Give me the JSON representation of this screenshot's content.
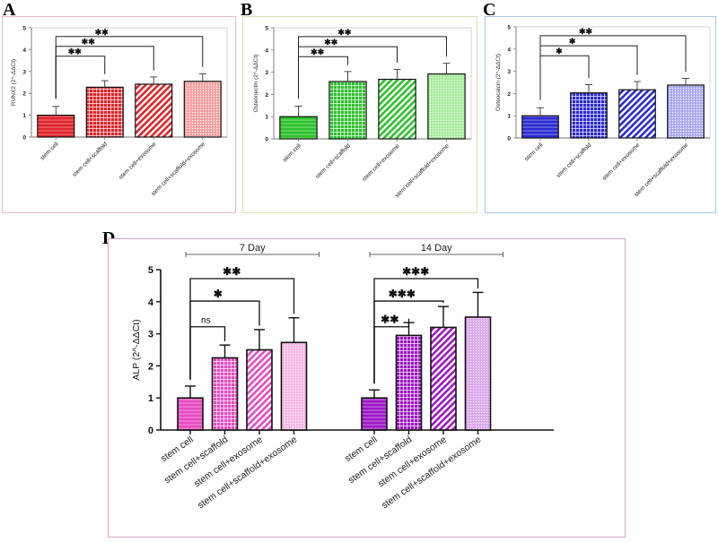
{
  "figure": {
    "panels": [
      {
        "letter": "A",
        "frame_color": "#e8b9c4"
      },
      {
        "letter": "B",
        "frame_color": "#d9e0b4"
      },
      {
        "letter": "C",
        "frame_color": "#a9c6e3"
      },
      {
        "letter": "D",
        "frame_color": "#d9a3c8"
      }
    ]
  },
  "chart_data": [
    {
      "id": "A",
      "type": "bar",
      "title": "",
      "xlabel": "",
      "ylabel": "RUNX2 (2^-ΔΔCt)",
      "ylim": [
        0,
        5
      ],
      "yticks": [
        "0",
        "1",
        "2",
        "3",
        "4",
        "5"
      ],
      "grid": false,
      "categories": [
        "stem cell",
        "stem cell+scaffold",
        "stem cell+exosome",
        "stem cell+scaffold+exosome"
      ],
      "values": [
        1.0,
        2.28,
        2.42,
        2.55
      ],
      "errors": [
        0.4,
        0.3,
        0.33,
        0.35
      ],
      "patterns": [
        "horizontal",
        "grid",
        "diagonal",
        "dots"
      ],
      "color": "#e0252b",
      "light_color": "#f4a0a0",
      "significance": [
        {
          "from": 0,
          "to": 1,
          "label": "**"
        },
        {
          "from": 0,
          "to": 2,
          "label": "**"
        },
        {
          "from": 0,
          "to": 3,
          "label": "**"
        }
      ]
    },
    {
      "id": "B",
      "type": "bar",
      "title": "",
      "xlabel": "",
      "ylabel": "Osteonectin (2^-ΔΔCt)",
      "ylim": [
        0,
        5
      ],
      "yticks": [
        "0",
        "1",
        "2",
        "3",
        "4",
        "5"
      ],
      "grid": false,
      "categories": [
        "stem cell",
        "stem cell+scaffold",
        "stem cell+exosome",
        "stem cell+scaffold+exosome"
      ],
      "values": [
        1.0,
        2.58,
        2.68,
        2.92
      ],
      "errors": [
        0.47,
        0.45,
        0.45,
        0.48
      ],
      "patterns": [
        "horizontal",
        "grid",
        "diagonal",
        "dots"
      ],
      "color": "#2ec02e",
      "light_color": "#a6ec9a",
      "significance": [
        {
          "from": 0,
          "to": 1,
          "label": "**"
        },
        {
          "from": 0,
          "to": 2,
          "label": "**"
        },
        {
          "from": 0,
          "to": 3,
          "label": "**"
        }
      ]
    },
    {
      "id": "C",
      "type": "bar",
      "title": "",
      "xlabel": "",
      "ylabel": "Osteocalcin (2^-ΔΔCt)",
      "ylim": [
        0,
        5
      ],
      "yticks": [
        "0",
        "1",
        "2",
        "3",
        "4",
        "5"
      ],
      "grid": false,
      "categories": [
        "stem cell",
        "stem cell+scaffold",
        "stem cell+exosome",
        "stem cell+scaffold+exosome"
      ],
      "values": [
        1.0,
        2.03,
        2.17,
        2.38
      ],
      "errors": [
        0.36,
        0.37,
        0.37,
        0.3
      ],
      "patterns": [
        "horizontal",
        "grid",
        "diagonal",
        "dots"
      ],
      "color": "#2b2bd0",
      "light_color": "#a8a8ee",
      "significance": [
        {
          "from": 0,
          "to": 1,
          "label": "*"
        },
        {
          "from": 0,
          "to": 2,
          "label": "*"
        },
        {
          "from": 0,
          "to": 3,
          "label": "**"
        }
      ]
    },
    {
      "id": "D",
      "type": "bar",
      "title": "",
      "xlabel": "",
      "ylabel": "ALP (2^-ΔΔCt)",
      "ylim": [
        0,
        5
      ],
      "yticks": [
        "0",
        "1",
        "2",
        "3",
        "4",
        "5"
      ],
      "grid": false,
      "groups": [
        {
          "label": "7 Day",
          "categories": [
            "stem cell",
            "stem cell+scaffold",
            "stem cell+exosome",
            "stem cell+scaffold+exosome"
          ],
          "values": [
            1.0,
            2.25,
            2.5,
            2.73
          ],
          "errors": [
            0.37,
            0.4,
            0.63,
            0.77
          ],
          "patterns": [
            "horizontal",
            "grid",
            "diagonal",
            "dots"
          ],
          "color": "#e64bbf",
          "light_color": "#f6b6e4",
          "significance": [
            {
              "from": 0,
              "to": 1,
              "label": "ns"
            },
            {
              "from": 0,
              "to": 2,
              "label": "*"
            },
            {
              "from": 0,
              "to": 3,
              "label": "**"
            }
          ]
        },
        {
          "label": "14 Day",
          "categories": [
            "stem cell",
            "stem cell+scaffold",
            "stem cell+exosome",
            "stem cell+scaffold+exosome"
          ],
          "values": [
            1.0,
            2.95,
            3.2,
            3.52
          ],
          "errors": [
            0.25,
            0.4,
            0.65,
            0.77
          ],
          "patterns": [
            "horizontal",
            "grid",
            "diagonal",
            "dots"
          ],
          "color": "#9b18c4",
          "light_color": "#dba4ee",
          "significance": [
            {
              "from": 0,
              "to": 1,
              "label": "**"
            },
            {
              "from": 0,
              "to": 2,
              "label": "***"
            },
            {
              "from": 0,
              "to": 3,
              "label": "***"
            }
          ]
        }
      ]
    }
  ]
}
